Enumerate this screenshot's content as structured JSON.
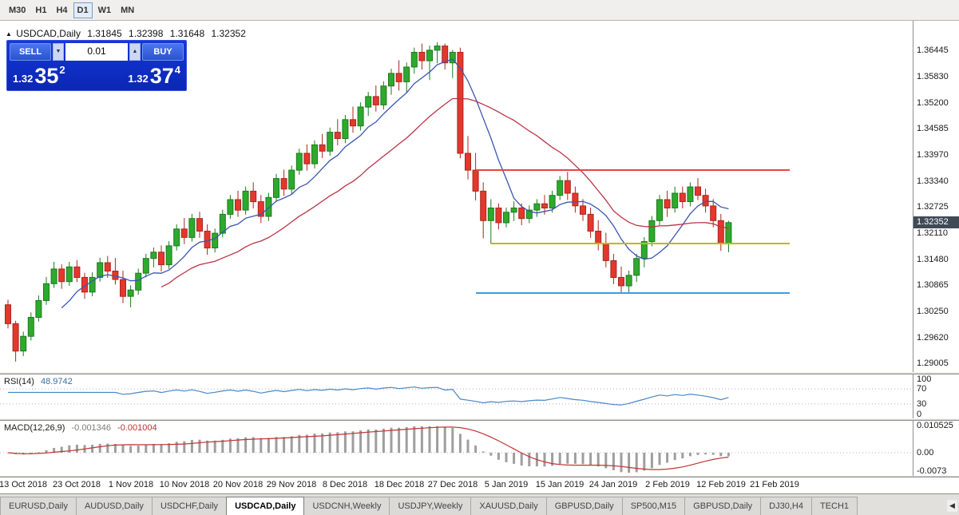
{
  "icons": {
    "chart_marker": "▲",
    "spinner_down": "▼",
    "spinner_up": "▲",
    "tab_scroll_left": "◀"
  },
  "toolbar": {
    "timeframes": [
      {
        "label": "M30",
        "active": false
      },
      {
        "label": "H1",
        "active": false
      },
      {
        "label": "H4",
        "active": false
      },
      {
        "label": "D1",
        "active": true
      },
      {
        "label": "W1",
        "active": false
      },
      {
        "label": "MN",
        "active": false
      }
    ]
  },
  "chart": {
    "symbol_title": "USDCAD,Daily",
    "open": "1.31845",
    "high": "1.32398",
    "low": "1.31648",
    "close": "1.32352",
    "current_price_label": "1.32352"
  },
  "trade": {
    "sell_label": "SELL",
    "buy_label": "BUY",
    "volume": "0.01",
    "bid_prefix": "1.32",
    "bid_big": "35",
    "bid_sup": "2",
    "ask_prefix": "1.32",
    "ask_big": "37",
    "ask_sup": "4"
  },
  "rsi": {
    "name": "RSI(14)",
    "value": "48.9742",
    "axis": [
      {
        "label": "100",
        "v": 100
      },
      {
        "label": "70",
        "v": 70
      },
      {
        "label": "30",
        "v": 30
      },
      {
        "label": "0",
        "v": 0
      }
    ],
    "levels": [
      70,
      30
    ]
  },
  "macd": {
    "name": "MACD(12,26,9)",
    "value_main": "-0.001346",
    "value_signal": "-0.001004",
    "axis": [
      {
        "label": "0.010525",
        "v": 0.010525
      },
      {
        "label": "0.00",
        "v": 0
      },
      {
        "label": "-0.0073",
        "v": -0.0073
      }
    ],
    "range": [
      -0.0073,
      0.010525
    ]
  },
  "tabbar": {
    "tabs": [
      {
        "label": "EURUSD,Daily",
        "active": false
      },
      {
        "label": "AUDUSD,Daily",
        "active": false
      },
      {
        "label": "USDCHF,Daily",
        "active": false
      },
      {
        "label": "USDCAD,Daily",
        "active": true
      },
      {
        "label": "USDCNH,Weekly",
        "active": false
      },
      {
        "label": "USDJPY,Weekly",
        "active": false
      },
      {
        "label": "XAUUSD,Daily",
        "active": false
      },
      {
        "label": "GBPUSD,Daily",
        "active": false
      },
      {
        "label": "SP500,M15",
        "active": false
      },
      {
        "label": "GBPUSD,Daily",
        "active": false
      },
      {
        "label": "DJ30,H4",
        "active": false
      },
      {
        "label": "TECH1",
        "active": false
      }
    ]
  },
  "chart_data": {
    "type": "candlestick",
    "title": "USDCAD,Daily",
    "price_range": [
      1.288,
      1.3715
    ],
    "price_axis_ticks": [
      "1.36445",
      "1.35830",
      "1.35200",
      "1.34585",
      "1.33970",
      "1.33340",
      "1.32725",
      "1.32110",
      "1.31480",
      "1.30865",
      "1.30250",
      "1.29620",
      "1.29005"
    ],
    "current_price": 1.32352,
    "date_labels": [
      "13 Oct 2018",
      "23 Oct 2018",
      "1 Nov 2018",
      "10 Nov 2018",
      "20 Nov 2018",
      "29 Nov 2018",
      "8 Dec 2018",
      "18 Dec 2018",
      "27 Dec 2018",
      "5 Jan 2019",
      "15 Jan 2019",
      "24 Jan 2019",
      "2 Feb 2019",
      "12 Feb 2019",
      "21 Feb 2019"
    ],
    "date_label_first_index": 2,
    "date_label_step": 7,
    "ma_fast_period": 8,
    "ma_slow_period": 21,
    "colors": {
      "up": "#2daa2d",
      "up_stroke": "#1d7a1d",
      "down": "#e4372d",
      "down_stroke": "#a8271f",
      "ma_fast": "#3b56b0",
      "ma_slow": "#bb3344",
      "rsi_line": "#4a87c7",
      "macd_hist": "#9e9e9e",
      "macd_signal": "#c03333"
    },
    "hlines": [
      {
        "name": "resistance-line",
        "price": 1.336,
        "color": "#e8453c",
        "width": 1.6,
        "from_index": 61,
        "to_index": 102
      },
      {
        "name": "support-line",
        "price": 1.3185,
        "color": "#b9bd00",
        "width": 2.4,
        "from_index": 63,
        "to_index": 102
      },
      {
        "name": "lower-support-line",
        "price": 1.3068,
        "color": "#3d9be9",
        "width": 2.4,
        "from_index": 61,
        "to_index": 102
      }
    ],
    "rsi_current": 48.9742,
    "macd_current": -0.001346,
    "macd_signal_current": -0.001004,
    "ohlc": [
      [
        1.304,
        1.3052,
        1.2984,
        1.2995
      ],
      [
        1.2995,
        1.3002,
        1.2905,
        1.293
      ],
      [
        1.293,
        1.2976,
        1.2918,
        1.2965
      ],
      [
        1.2965,
        1.3022,
        1.2955,
        1.301
      ],
      [
        1.301,
        1.3062,
        1.3,
        1.305
      ],
      [
        1.305,
        1.3106,
        1.304,
        1.309
      ],
      [
        1.309,
        1.3142,
        1.308,
        1.3125
      ],
      [
        1.3125,
        1.3136,
        1.3078,
        1.3095
      ],
      [
        1.3095,
        1.3142,
        1.3085,
        1.313
      ],
      [
        1.313,
        1.3146,
        1.3094,
        1.3105
      ],
      [
        1.3105,
        1.3116,
        1.3054,
        1.307
      ],
      [
        1.307,
        1.3117,
        1.306,
        1.3105
      ],
      [
        1.3105,
        1.3152,
        1.3095,
        1.314
      ],
      [
        1.314,
        1.3156,
        1.3104,
        1.312
      ],
      [
        1.312,
        1.3151,
        1.3088,
        1.31
      ],
      [
        1.31,
        1.3121,
        1.3044,
        1.306
      ],
      [
        1.306,
        1.3086,
        1.3034,
        1.3075
      ],
      [
        1.3075,
        1.3126,
        1.3064,
        1.3115
      ],
      [
        1.3115,
        1.3161,
        1.3105,
        1.315
      ],
      [
        1.315,
        1.3176,
        1.3129,
        1.3165
      ],
      [
        1.3165,
        1.3181,
        1.3119,
        1.3135
      ],
      [
        1.3135,
        1.3191,
        1.3125,
        1.318
      ],
      [
        1.318,
        1.3231,
        1.3169,
        1.322
      ],
      [
        1.322,
        1.3246,
        1.3184,
        1.32
      ],
      [
        1.32,
        1.3256,
        1.319,
        1.3245
      ],
      [
        1.3245,
        1.3261,
        1.3199,
        1.3215
      ],
      [
        1.3215,
        1.3231,
        1.3159,
        1.3175
      ],
      [
        1.3175,
        1.3221,
        1.3164,
        1.321
      ],
      [
        1.321,
        1.3266,
        1.32,
        1.3255
      ],
      [
        1.3255,
        1.3301,
        1.3244,
        1.329
      ],
      [
        1.329,
        1.3311,
        1.3249,
        1.3265
      ],
      [
        1.3265,
        1.3321,
        1.3254,
        1.331
      ],
      [
        1.331,
        1.3331,
        1.3269,
        1.3285
      ],
      [
        1.3285,
        1.3301,
        1.3234,
        1.325
      ],
      [
        1.325,
        1.3306,
        1.3239,
        1.3295
      ],
      [
        1.3295,
        1.3351,
        1.3284,
        1.334
      ],
      [
        1.334,
        1.3361,
        1.3299,
        1.3315
      ],
      [
        1.3315,
        1.3371,
        1.3304,
        1.336
      ],
      [
        1.336,
        1.3411,
        1.3349,
        1.34
      ],
      [
        1.34,
        1.3421,
        1.3359,
        1.3375
      ],
      [
        1.3375,
        1.3431,
        1.3364,
        1.342
      ],
      [
        1.342,
        1.3446,
        1.3389,
        1.3405
      ],
      [
        1.3405,
        1.3461,
        1.3394,
        1.345
      ],
      [
        1.345,
        1.3481,
        1.3419,
        1.3435
      ],
      [
        1.3435,
        1.3491,
        1.3424,
        1.348
      ],
      [
        1.348,
        1.3511,
        1.3449,
        1.3465
      ],
      [
        1.3465,
        1.3521,
        1.3454,
        1.351
      ],
      [
        1.351,
        1.3546,
        1.3489,
        1.3535
      ],
      [
        1.3535,
        1.3561,
        1.3499,
        1.3515
      ],
      [
        1.3515,
        1.3571,
        1.3504,
        1.356
      ],
      [
        1.356,
        1.3601,
        1.3539,
        1.359
      ],
      [
        1.359,
        1.3621,
        1.3549,
        1.357
      ],
      [
        1.357,
        1.3616,
        1.3544,
        1.3605
      ],
      [
        1.3605,
        1.3651,
        1.3589,
        1.364
      ],
      [
        1.364,
        1.3661,
        1.3599,
        1.362
      ],
      [
        1.362,
        1.3656,
        1.3574,
        1.3645
      ],
      [
        1.3645,
        1.3664,
        1.3614,
        1.3655
      ],
      [
        1.3655,
        1.3661,
        1.3599,
        1.3615
      ],
      [
        1.3615,
        1.3646,
        1.3579,
        1.364
      ],
      [
        1.364,
        1.3651,
        1.3388,
        1.34
      ],
      [
        1.34,
        1.3441,
        1.3338,
        1.336
      ],
      [
        1.336,
        1.3401,
        1.3288,
        1.331
      ],
      [
        1.331,
        1.3331,
        1.3198,
        1.324
      ],
      [
        1.324,
        1.3291,
        1.3185,
        1.327
      ],
      [
        1.327,
        1.3281,
        1.3219,
        1.3235
      ],
      [
        1.3235,
        1.3271,
        1.3224,
        1.326
      ],
      [
        1.326,
        1.3286,
        1.3239,
        1.327
      ],
      [
        1.327,
        1.3281,
        1.3229,
        1.3245
      ],
      [
        1.3245,
        1.3276,
        1.3234,
        1.3265
      ],
      [
        1.3265,
        1.3291,
        1.3249,
        1.328
      ],
      [
        1.328,
        1.3301,
        1.3254,
        1.327
      ],
      [
        1.327,
        1.3311,
        1.3259,
        1.33
      ],
      [
        1.33,
        1.3346,
        1.3289,
        1.3335
      ],
      [
        1.3335,
        1.3356,
        1.3289,
        1.3305
      ],
      [
        1.3305,
        1.3321,
        1.3259,
        1.3275
      ],
      [
        1.3275,
        1.3291,
        1.3239,
        1.3255
      ],
      [
        1.3255,
        1.3271,
        1.3199,
        1.3215
      ],
      [
        1.3215,
        1.3241,
        1.3169,
        1.3185
      ],
      [
        1.3185,
        1.3211,
        1.3129,
        1.3145
      ],
      [
        1.3145,
        1.3161,
        1.3089,
        1.3105
      ],
      [
        1.3105,
        1.3131,
        1.3069,
        1.3085
      ],
      [
        1.3085,
        1.3121,
        1.3067,
        1.311
      ],
      [
        1.311,
        1.3161,
        1.3094,
        1.315
      ],
      [
        1.315,
        1.3201,
        1.3129,
        1.319
      ],
      [
        1.319,
        1.3251,
        1.3179,
        1.324
      ],
      [
        1.324,
        1.3301,
        1.3229,
        1.329
      ],
      [
        1.329,
        1.3311,
        1.3249,
        1.327
      ],
      [
        1.327,
        1.3321,
        1.3259,
        1.3305
      ],
      [
        1.3305,
        1.3321,
        1.3269,
        1.3285
      ],
      [
        1.3285,
        1.3331,
        1.3274,
        1.332
      ],
      [
        1.332,
        1.3341,
        1.3289,
        1.33
      ],
      [
        1.33,
        1.3316,
        1.3259,
        1.3275
      ],
      [
        1.3275,
        1.3291,
        1.3224,
        1.324
      ],
      [
        1.324,
        1.3256,
        1.3168,
        1.3185
      ],
      [
        1.31845,
        1.32398,
        1.31648,
        1.32352
      ]
    ]
  }
}
